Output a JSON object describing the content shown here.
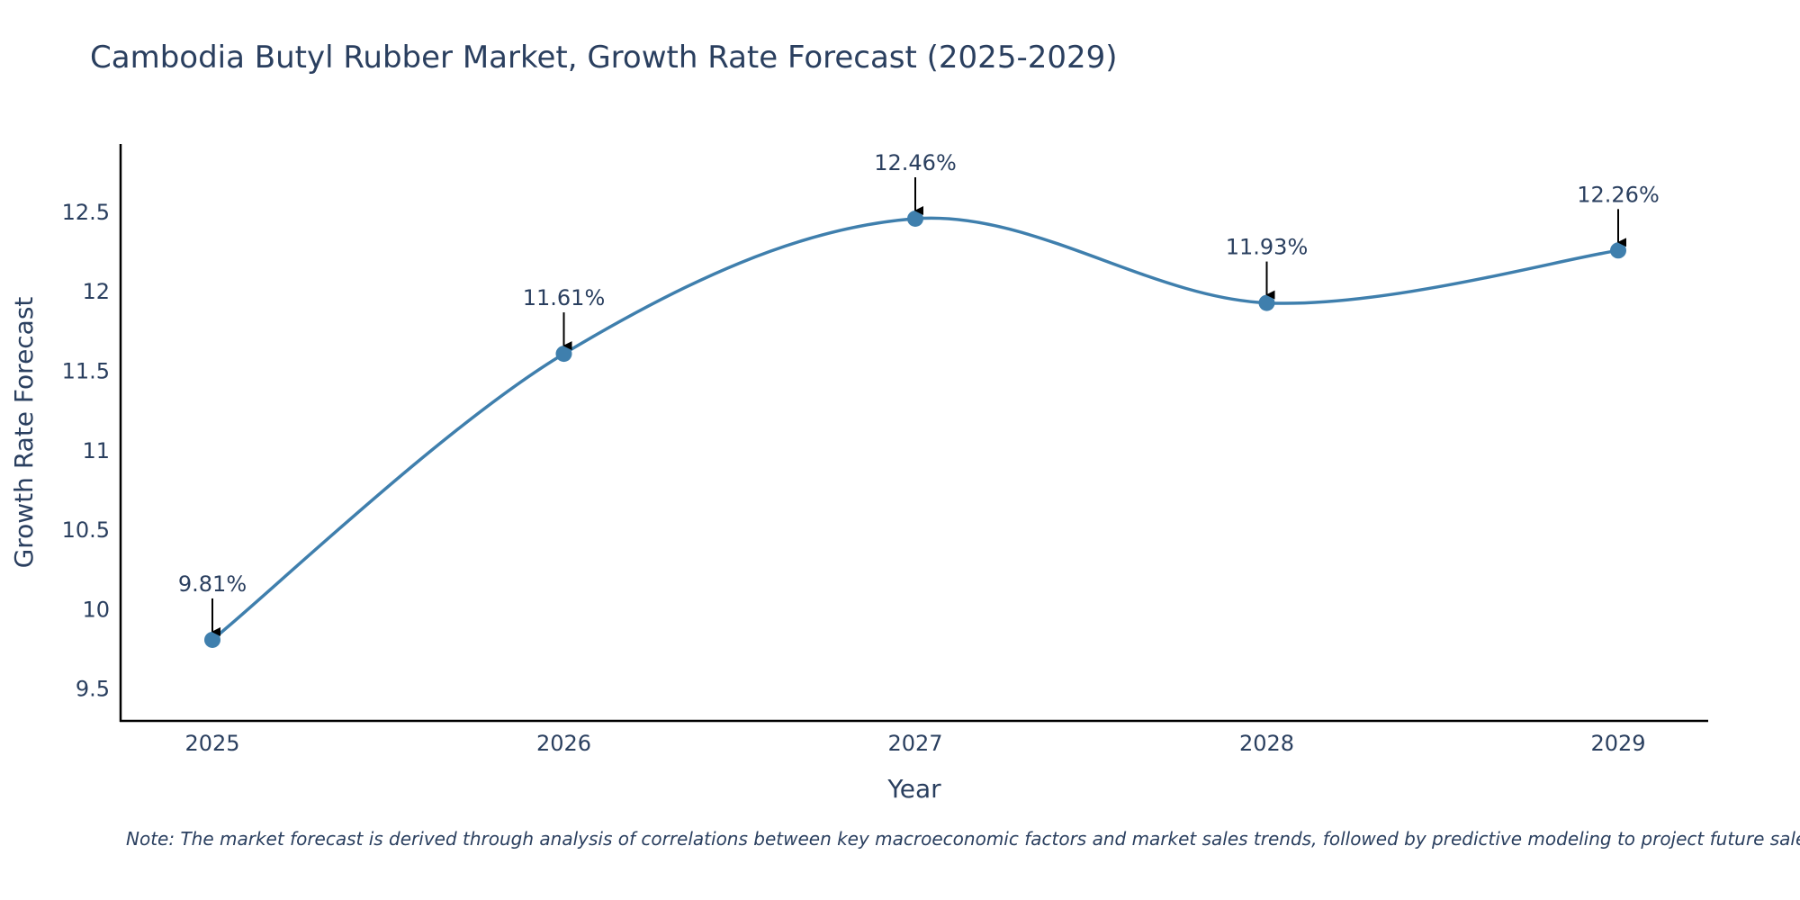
{
  "chart_data": {
    "type": "line",
    "title": "Cambodia Butyl Rubber Market, Growth Rate Forecast (2025-2029)",
    "xlabel": "Year",
    "ylabel": "Growth Rate Forecast",
    "categories": [
      "2025",
      "2026",
      "2027",
      "2028",
      "2029"
    ],
    "series": [
      {
        "name": "Growth Rate Forecast",
        "values": [
          9.81,
          11.61,
          12.46,
          11.93,
          12.26
        ]
      }
    ],
    "data_labels": [
      "9.81%",
      "11.61%",
      "12.46%",
      "11.93%",
      "12.26%"
    ],
    "ylim": [
      9.3,
      12.93
    ],
    "yticks": [
      9.5,
      10,
      10.5,
      11,
      11.5,
      12,
      12.5
    ],
    "ytick_labels": [
      "9.5",
      "10",
      "10.5",
      "11",
      "11.5",
      "12",
      "12.5"
    ],
    "grid": false,
    "line_color": "#3f7fad",
    "marker_color": "#3f7fad",
    "note": "Note: The market forecast is derived through analysis of correlations between key macroeconomic factors and market sales trends, followed by predictive modeling to project future sales."
  }
}
